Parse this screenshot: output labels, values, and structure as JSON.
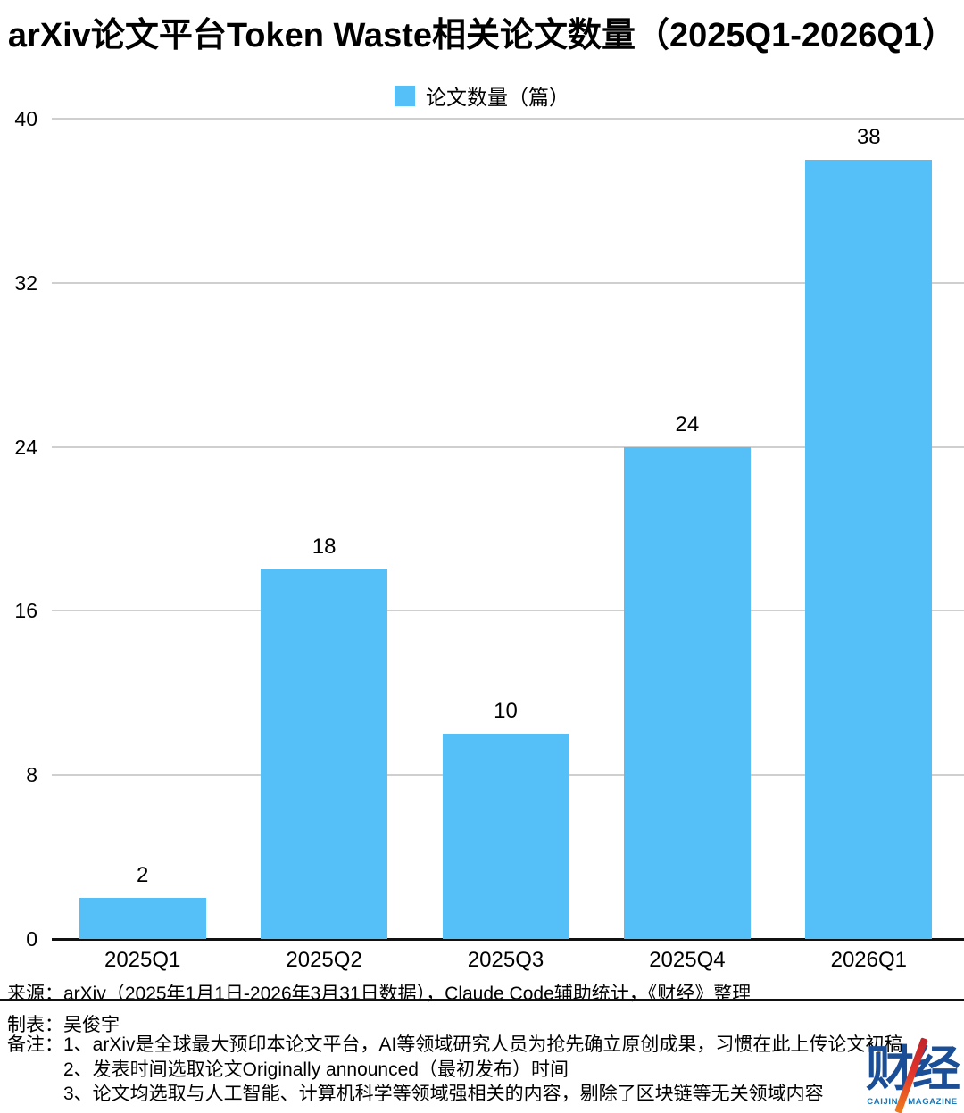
{
  "title": "arXiv论文平台Token Waste相关论文数量（2025Q1-2026Q1）",
  "legend": {
    "label": "论文数量（篇）"
  },
  "chart_data": {
    "type": "bar",
    "title": "arXiv论文平台Token Waste相关论文数量（2025Q1-2026Q1）",
    "categories": [
      "2025Q1",
      "2025Q2",
      "2025Q3",
      "2025Q4",
      "2026Q1"
    ],
    "values": [
      2,
      18,
      10,
      24,
      38
    ],
    "series_name": "论文数量（篇）",
    "xlabel": "",
    "ylabel": "",
    "ylim": [
      0,
      40
    ],
    "yticks": [
      0,
      8,
      16,
      24,
      32,
      40
    ],
    "grid": true,
    "legend_position": "top",
    "bar_color": "#55bff8",
    "gridline_color": "#cfcfcf",
    "axis_color": "#111111"
  },
  "footer": {
    "source": "来源：arXiv（2025年1月1日-2026年3月31日数据），Claude Code辅助统计，《财经》整理",
    "prepared_by": "制表：吴俊宇",
    "notes_label": "备注：",
    "notes": [
      "1、arXiv是全球最大预印本论文平台，AI等领域研究人员为抢先确立原创成果，习惯在此上传论文初稿",
      "2、发表时间选取论文Originally announced（最初发布）时间",
      "3、论文均选取与人工智能、计算机科学等领域强相关的内容，剔除了区块链等无关领域内容"
    ],
    "logo": {
      "text": "财经",
      "subtext": "CAIJING MAGAZINE"
    }
  }
}
